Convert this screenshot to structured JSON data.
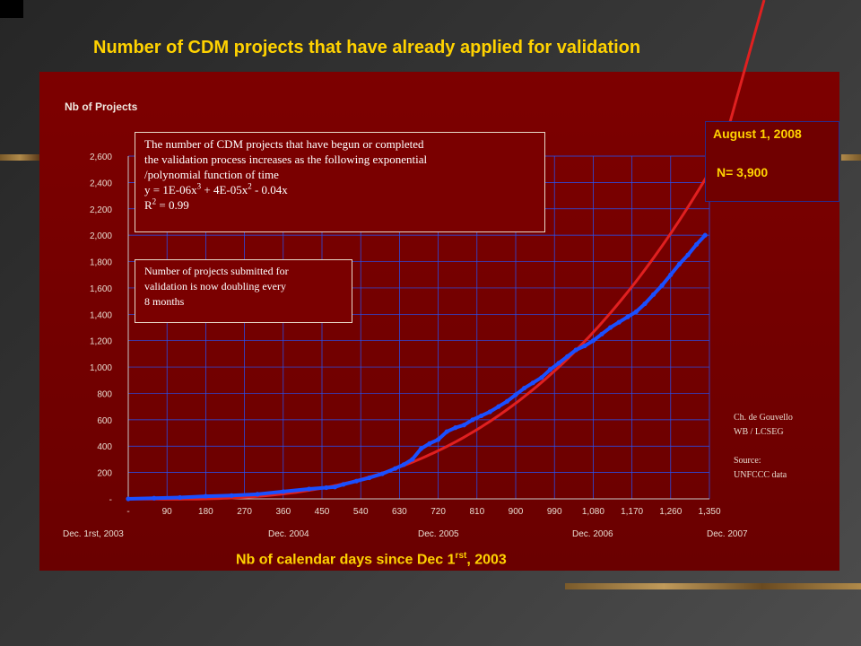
{
  "slide": {
    "title": "Number of CDM projects that have already applied for validation"
  },
  "colors": {
    "title_yellow": "#ffd200",
    "panel_red": "#7d0000",
    "data_blue": "#1a4fff",
    "fit_red": "#e02020",
    "grid_blue": "#2255ff"
  },
  "axis_labels": {
    "y_title": "Nb of Projects",
    "x_title_pre": "Nb of calendar days since Dec 1",
    "x_title_sup": "rst",
    "x_title_post": ", 2003"
  },
  "date_labels": [
    "Dec. 1rst, 2003",
    "Dec. 2004",
    "Dec. 2005",
    "Dec. 2006",
    "Dec. 2007"
  ],
  "annotation_main": {
    "line1": "The number of CDM projects that have begun or completed",
    "line2": "the validation process increases as the following exponential",
    "line3": "/polynomial function of time",
    "eq_a": "y = 1E-06x",
    "eq_exp1": "3",
    "eq_b": " + 4E-05x",
    "eq_exp2": "2",
    "eq_c": " - 0.04x",
    "r_label": "R",
    "r_exp": "2",
    "r_value": " = 0.99"
  },
  "annotation_doubling": {
    "line1": "Number of projects submitted for",
    "line2": "validation is  now doubling every",
    "line3": "8 months"
  },
  "callout": {
    "date": "August 1, 2008",
    "n_label": "N= 3,900"
  },
  "credits": {
    "author": "Ch. de Gouvello",
    "org": "WB / LCSEG",
    "source_label": "Source:",
    "source": "UNFCCC data"
  },
  "chart_data": {
    "type": "scatter",
    "ylabel": "Nb of Projects",
    "xlabel": "Nb of calendar days since Dec 1rst, 2003",
    "xlim": [
      0,
      1350
    ],
    "ylim": [
      0,
      2600
    ],
    "x_ticks": [
      0,
      90,
      180,
      270,
      360,
      450,
      540,
      630,
      720,
      810,
      900,
      990,
      1080,
      1170,
      1260,
      1350
    ],
    "x_tick_labels": [
      "-",
      "90",
      "180",
      "270",
      "360",
      "450",
      "540",
      "630",
      "720",
      "810",
      "900",
      "990",
      "1,080",
      "1,170",
      "1,260",
      "1,350"
    ],
    "y_ticks": [
      0,
      200,
      400,
      600,
      800,
      1000,
      1200,
      1400,
      1600,
      1800,
      2000,
      2200,
      2400,
      2600
    ],
    "y_tick_labels": [
      "-",
      "200",
      "400",
      "600",
      "800",
      "1,000",
      "1,200",
      "1,400",
      "1,600",
      "1,800",
      "2,000",
      "2,200",
      "2,400",
      "2,600"
    ],
    "grid": true,
    "series": [
      {
        "name": "",
        "style": "points",
        "x": [
          0,
          60,
          120,
          180,
          240,
          300,
          360,
          420,
          460,
          480,
          500,
          530,
          560,
          590,
          620,
          640,
          660,
          680,
          700,
          720,
          740,
          760,
          780,
          800,
          820,
          840,
          860,
          880,
          900,
          920,
          940,
          960,
          980,
          1000,
          1020,
          1040,
          1060,
          1080,
          1100,
          1120,
          1140,
          1160,
          1180,
          1200,
          1220,
          1240,
          1260,
          1280,
          1300,
          1320,
          1340
        ],
        "y": [
          0,
          5,
          10,
          20,
          25,
          35,
          55,
          75,
          85,
          90,
          110,
          135,
          160,
          190,
          230,
          260,
          300,
          380,
          420,
          450,
          510,
          540,
          560,
          600,
          630,
          660,
          700,
          740,
          790,
          840,
          880,
          920,
          980,
          1030,
          1080,
          1130,
          1160,
          1200,
          1250,
          1300,
          1340,
          1380,
          1420,
          1480,
          1550,
          1620,
          1700,
          1780,
          1850,
          1930,
          2000
        ]
      },
      {
        "name": "",
        "style": "fit",
        "equation": "y = 1E-06x3 + 4E-05x2 - 0.04x",
        "r_squared": 0.99
      }
    ]
  }
}
